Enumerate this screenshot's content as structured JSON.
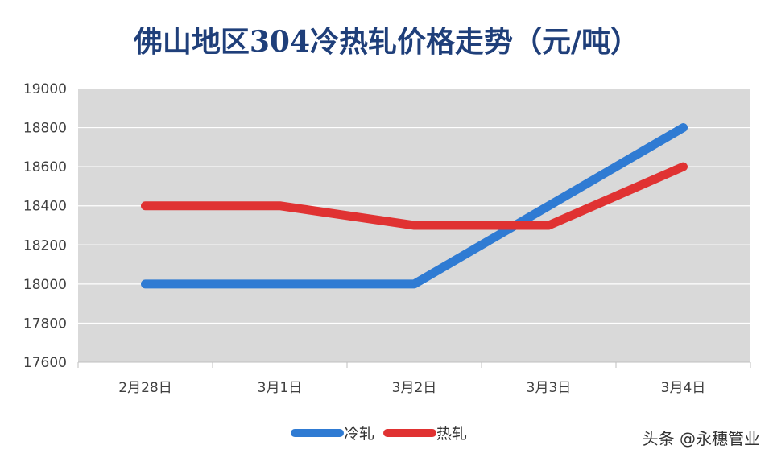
{
  "chart_data": {
    "type": "line",
    "title": "佛山地区304冷热轧价格走势（元/吨）",
    "categories": [
      "2月28日",
      "3月1日",
      "3月2日",
      "3月3日",
      "3月4日"
    ],
    "series": [
      {
        "name": "冷轧",
        "color": "#2f7bd3",
        "values": [
          18000,
          18000,
          18000,
          18400,
          18800
        ]
      },
      {
        "name": "热轧",
        "color": "#e03232",
        "values": [
          18400,
          18400,
          18300,
          18300,
          18600
        ]
      }
    ],
    "ylim": [
      17600,
      19000
    ],
    "yticks": [
      17600,
      17800,
      18000,
      18200,
      18400,
      18600,
      18800,
      19000
    ],
    "grid": true,
    "legend": "bottom",
    "plot_background": "#d9d9d9",
    "gridline_color": "#ffffff"
  },
  "watermark": "头条 @永穗管业"
}
